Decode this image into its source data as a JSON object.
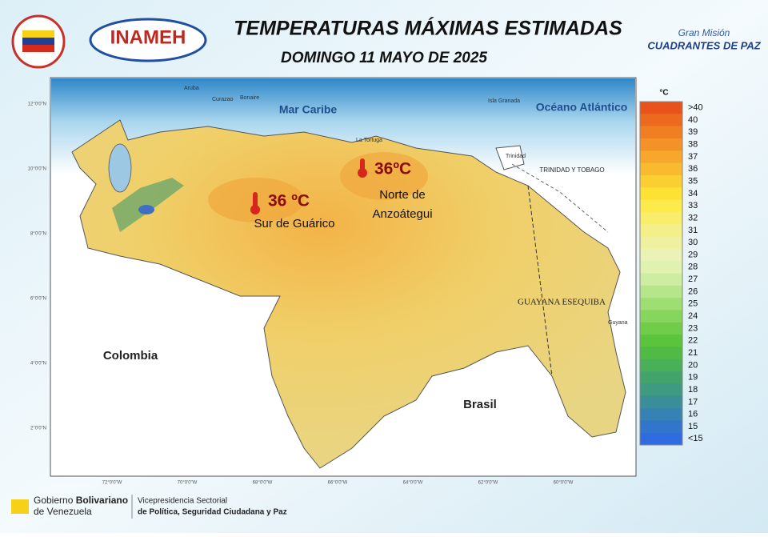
{
  "header": {
    "title": "TEMPERATURAS MÁXIMAS ESTIMADAS",
    "subtitle": "DOMINGO 11 MAYO DE 2025",
    "logo_left": "INAMEH",
    "logo_right": [
      "Gran Misión",
      "CUADRANTES DE PAZ"
    ]
  },
  "map": {
    "seas": [
      "Mar Caribe",
      "Océano Atlántico"
    ],
    "countries": [
      "Colombia",
      "Brasil"
    ],
    "regions": [
      "GUAYANA ESEQUIBA",
      "TRINIDAD Y TOBAGO"
    ],
    "islands": [
      "Aruba",
      "Curazao",
      "Bonaire",
      "La Tortuga",
      "Isla Granada",
      "Trinidad",
      "Guyana"
    ],
    "hotspots": [
      {
        "temp": "36 ºC",
        "place": [
          "Sur de Guárico"
        ]
      },
      {
        "temp": "36ºC",
        "place": [
          "Norte de",
          "Anzoátegui"
        ]
      }
    ],
    "lat_ticks": [
      "12°0'0\"N",
      "10°0'0\"N",
      "8°0'0\"N",
      "6°0'0\"N",
      "4°0'0\"N",
      "2°0'0\"N"
    ],
    "lon_ticks": [
      "72°0'0\"W",
      "70°0'0\"W",
      "68°0'0\"W",
      "66°0'0\"W",
      "64°0'0\"W",
      "62°0'0\"W",
      "60°0'0\"W"
    ]
  },
  "legend": {
    "unit": "°C",
    "labels": [
      ">40",
      "40",
      "39",
      "38",
      "37",
      "36",
      "35",
      "34",
      "33",
      "32",
      "31",
      "30",
      "29",
      "28",
      "27",
      "26",
      "25",
      "24",
      "23",
      "22",
      "21",
      "20",
      "19",
      "18",
      "17",
      "16",
      "15",
      "<15"
    ],
    "colors": [
      "#e8531c",
      "#ec6a1e",
      "#f07f22",
      "#f39227",
      "#f6a72c",
      "#f8bb2f",
      "#fbcf33",
      "#fde234",
      "#fdeb4c",
      "#f9ee6c",
      "#f4ef88",
      "#eff1a1",
      "#eaf2b6",
      "#dff2b0",
      "#cdeda0",
      "#b5e68a",
      "#9ede72",
      "#86d65e",
      "#6fcd4a",
      "#5ac53c",
      "#4fbb45",
      "#48b057",
      "#42a46b",
      "#3e9a80",
      "#3a8e98",
      "#3682b2",
      "#3276cb",
      "#2f6ce0"
    ]
  },
  "footer": {
    "gov": [
      "Gobierno ",
      "Bolivariano",
      "de Venezuela"
    ],
    "vice": [
      "Vicepresidencia Sectorial",
      "de Política, Seguridad Ciudadana y Paz"
    ]
  }
}
